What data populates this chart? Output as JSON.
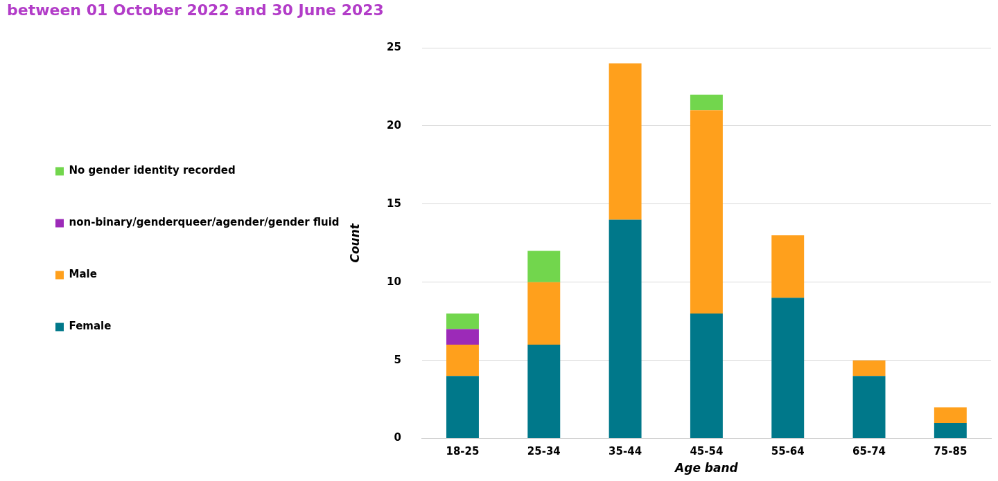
{
  "chart_data": {
    "type": "bar",
    "title": "between 01 October 2022 and 30 June 2023",
    "xlabel": "Age band",
    "ylabel": "Count",
    "categories": [
      "18-25",
      "25-34",
      "35-44",
      "45-54",
      "55-64",
      "65-74",
      "75-85"
    ],
    "series": [
      {
        "name": "Female",
        "color": "#00788a",
        "values": [
          4,
          6,
          14,
          8,
          9,
          4,
          1
        ]
      },
      {
        "name": "Male",
        "color": "#ffa01c",
        "values": [
          2,
          4,
          10,
          13,
          4,
          1,
          1
        ]
      },
      {
        "name": "non-binary/genderqueer/agender/gender fluid",
        "color": "#9c2ab8",
        "values": [
          1,
          0,
          0,
          0,
          0,
          0,
          0
        ]
      },
      {
        "name": "No gender identity recorded",
        "color": "#72d64d",
        "values": [
          1,
          2,
          0,
          1,
          0,
          0,
          0
        ]
      }
    ],
    "stacked": true,
    "ylim": [
      0,
      25
    ],
    "yticks": [
      0,
      5,
      10,
      15,
      20,
      25
    ],
    "grid": "y",
    "legend": "left"
  }
}
